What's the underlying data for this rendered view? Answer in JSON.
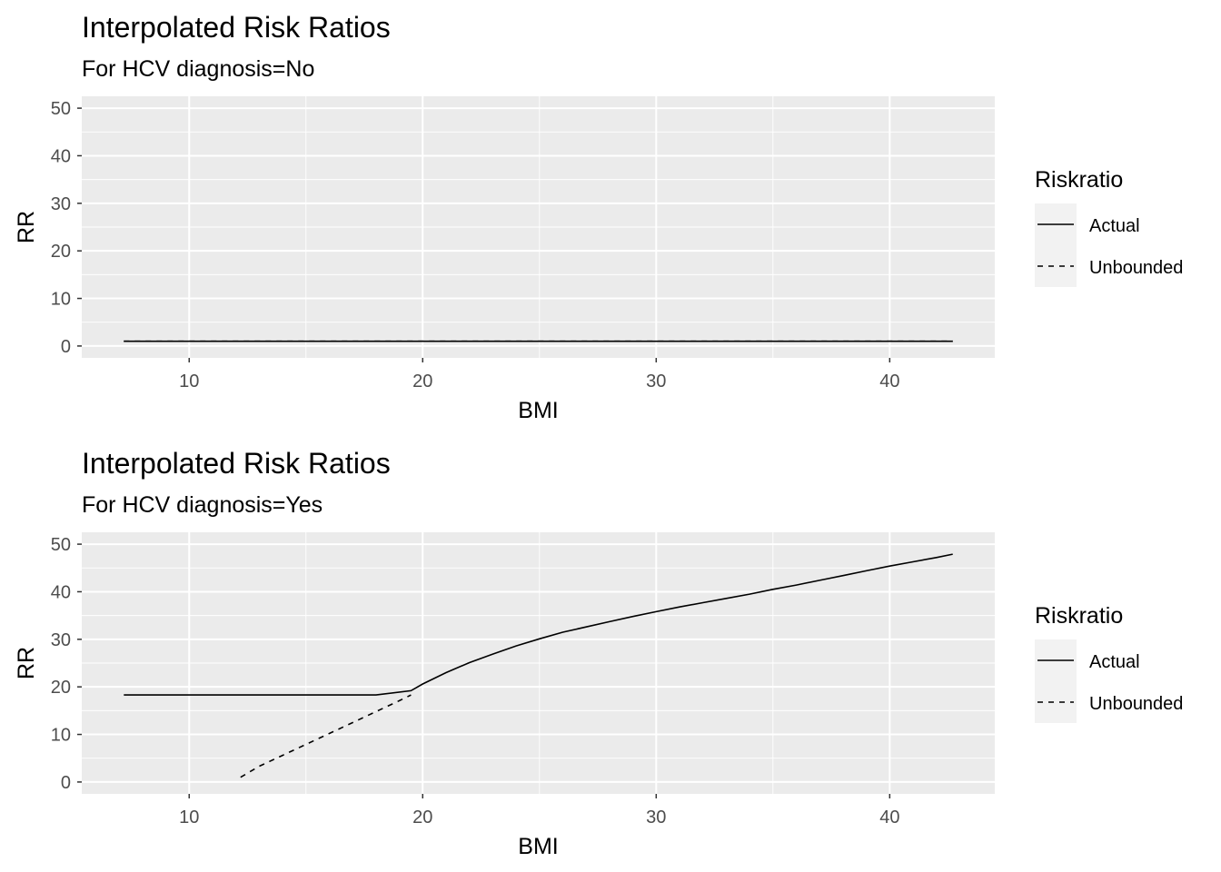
{
  "chart_data": [
    {
      "type": "line",
      "title": "Interpolated Risk Ratios",
      "subtitle": "For  HCV diagnosis=No",
      "xlabel": "BMI",
      "ylabel": "RR",
      "xlim": [
        5.4,
        44.5
      ],
      "ylim": [
        -2.5,
        52.5
      ],
      "xticks": [
        10,
        20,
        30,
        40
      ],
      "yticks": [
        0,
        10,
        20,
        30,
        40,
        50
      ],
      "grid": true,
      "legend": {
        "title": "Riskratio",
        "position": "right",
        "entries": [
          "Actual",
          "Unbounded"
        ]
      },
      "series": [
        {
          "name": "Actual",
          "linetype": "solid",
          "x": [
            7.2,
            42.7
          ],
          "y": [
            1,
            1
          ]
        },
        {
          "name": "Unbounded",
          "linetype": "dashed",
          "x": [
            7.2,
            42.7
          ],
          "y": [
            1,
            1
          ]
        }
      ]
    },
    {
      "type": "line",
      "title": "Interpolated Risk Ratios",
      "subtitle": "For  HCV diagnosis=Yes",
      "xlabel": "BMI",
      "ylabel": "RR",
      "xlim": [
        5.4,
        44.5
      ],
      "ylim": [
        -2.5,
        52.5
      ],
      "xticks": [
        10,
        20,
        30,
        40
      ],
      "yticks": [
        0,
        10,
        20,
        30,
        40,
        50
      ],
      "grid": true,
      "legend": {
        "title": "Riskratio",
        "position": "right",
        "entries": [
          "Actual",
          "Unbounded"
        ]
      },
      "series": [
        {
          "name": "Actual",
          "linetype": "solid",
          "x": [
            7.2,
            8,
            10,
            12,
            14,
            16,
            18,
            19.5,
            20,
            21,
            22,
            23,
            24,
            25,
            26,
            27,
            28,
            29,
            30,
            31,
            32,
            33,
            34,
            35,
            36,
            37,
            38,
            39,
            40,
            41,
            42,
            42.7
          ],
          "y": [
            18.3,
            18.3,
            18.3,
            18.3,
            18.3,
            18.3,
            18.3,
            19.2,
            20.6,
            23.0,
            25.1,
            26.9,
            28.6,
            30.1,
            31.5,
            32.6,
            33.7,
            34.8,
            35.8,
            36.8,
            37.7,
            38.6,
            39.5,
            40.5,
            41.4,
            42.4,
            43.4,
            44.4,
            45.4,
            46.3,
            47.2,
            47.9
          ]
        },
        {
          "name": "Unbounded",
          "linetype": "dashed",
          "x": [
            12.2,
            13,
            14,
            15,
            16,
            17,
            18,
            19,
            19.5
          ],
          "y": [
            1,
            3.3,
            5.6,
            7.9,
            10.2,
            12.5,
            14.8,
            17.1,
            18.3
          ]
        }
      ]
    }
  ],
  "colors": {
    "panel": "#ebebeb",
    "grid": "#ffffff",
    "line": "#000000",
    "tick_text": "#4d4d4d",
    "legend_key": "#f2f2f2"
  }
}
